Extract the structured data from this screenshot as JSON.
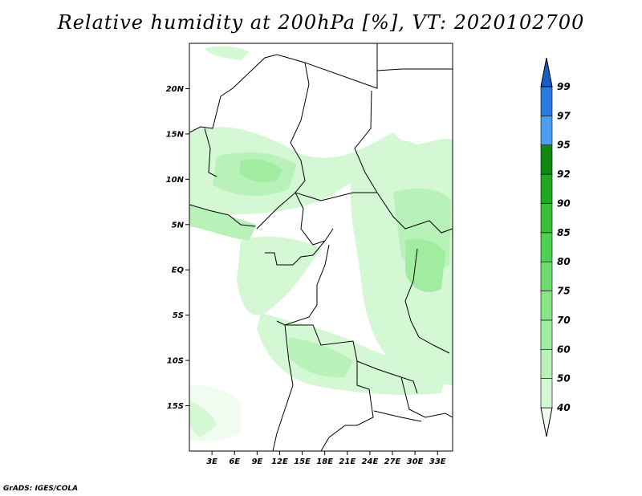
{
  "title": "Relative humidity at 200hPa [%], VT: 2020102700",
  "credit": "GrADS: IGES/COLA",
  "map": {
    "lat_labels": [
      "20N",
      "15N",
      "10N",
      "5N",
      "EQ",
      "5S",
      "10S",
      "15S"
    ],
    "lat_values": [
      20,
      15,
      10,
      5,
      0,
      -5,
      -10,
      -15
    ],
    "lon_labels": [
      "3E",
      "6E",
      "9E",
      "12E",
      "15E",
      "18E",
      "21E",
      "24E",
      "27E",
      "30E",
      "33E"
    ],
    "lon_values": [
      3,
      6,
      9,
      12,
      15,
      18,
      21,
      24,
      27,
      30,
      33
    ],
    "lat_range": [
      -20,
      25
    ],
    "lon_range": [
      0,
      35
    ]
  },
  "colorbar": {
    "levels": [
      "40",
      "50",
      "60",
      "70",
      "75",
      "80",
      "85",
      "90",
      "92",
      "95",
      "97",
      "99"
    ],
    "colors": [
      "#f0fcf0",
      "#d4f7d4",
      "#b8f2b8",
      "#a0eca0",
      "#88e688",
      "#6cdc6c",
      "#50d050",
      "#38c038",
      "#20a820",
      "#108a10",
      "#4aa0f0",
      "#2a7ae0",
      "#1a5cc8"
    ]
  }
}
